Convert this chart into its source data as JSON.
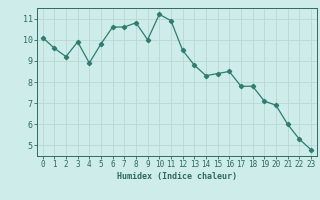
{
  "x": [
    0,
    1,
    2,
    3,
    4,
    5,
    6,
    7,
    8,
    9,
    10,
    11,
    12,
    13,
    14,
    15,
    16,
    17,
    18,
    19,
    20,
    21,
    22,
    23
  ],
  "y": [
    10.1,
    9.6,
    9.2,
    9.9,
    8.9,
    9.8,
    10.6,
    10.6,
    10.8,
    10.0,
    11.2,
    10.9,
    9.5,
    8.8,
    8.3,
    8.4,
    8.5,
    7.8,
    7.8,
    7.1,
    6.9,
    6.0,
    5.3,
    4.8
  ],
  "xlabel": "Humidex (Indice chaleur)",
  "line_color": "#2e7d6e",
  "marker": "D",
  "marker_size": 2.2,
  "bg_color": "#ceecea",
  "grid_color_major": "#b8d8d4",
  "grid_color_minor": "#c8e6e2",
  "ylim": [
    4.5,
    11.5
  ],
  "xlim": [
    -0.5,
    23.5
  ],
  "yticks": [
    5,
    6,
    7,
    8,
    9,
    10,
    11
  ],
  "xticks": [
    0,
    1,
    2,
    3,
    4,
    5,
    6,
    7,
    8,
    9,
    10,
    11,
    12,
    13,
    14,
    15,
    16,
    17,
    18,
    19,
    20,
    21,
    22,
    23
  ],
  "tick_color": "#2e6b5e",
  "spine_color": "#2e6b5e",
  "xlabel_fontsize": 6.0,
  "tick_fontsize": 5.5,
  "ytick_fontsize": 6.0,
  "linewidth": 0.9
}
